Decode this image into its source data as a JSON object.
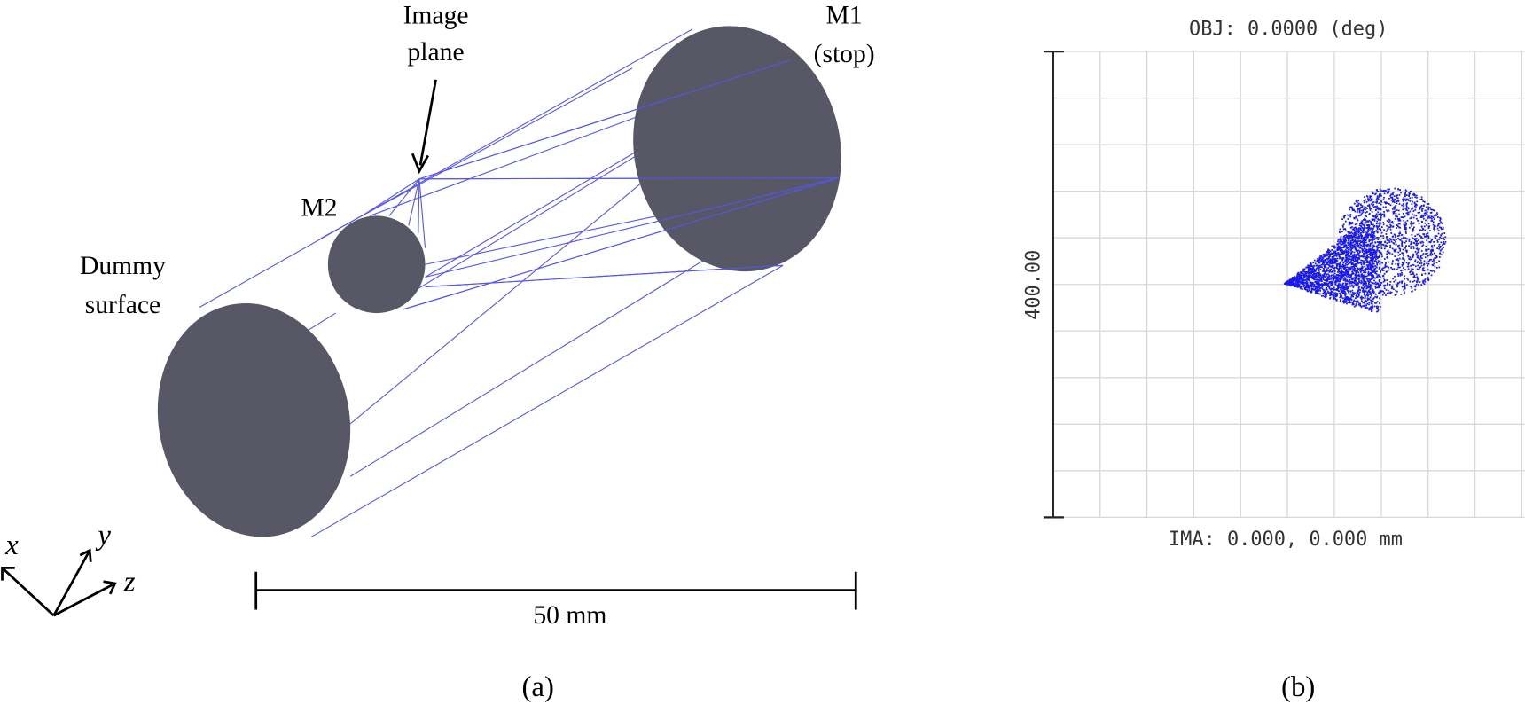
{
  "panel_a": {
    "image_plane": [
      "Image",
      "plane"
    ],
    "m1": [
      "M1",
      "(stop)"
    ],
    "m2": "M2",
    "dummy_surface": [
      "Dummy",
      "surface"
    ],
    "axes": {
      "x": "x",
      "y": "y",
      "z": "z"
    },
    "scale_bar": "50 mm",
    "caption": "(a)"
  },
  "panel_b": {
    "title": "OBJ: 0.0000 (deg)",
    "scale_label": "400.00",
    "footer": "IMA: 0.000, 0.000 mm",
    "caption": "(b)"
  }
}
